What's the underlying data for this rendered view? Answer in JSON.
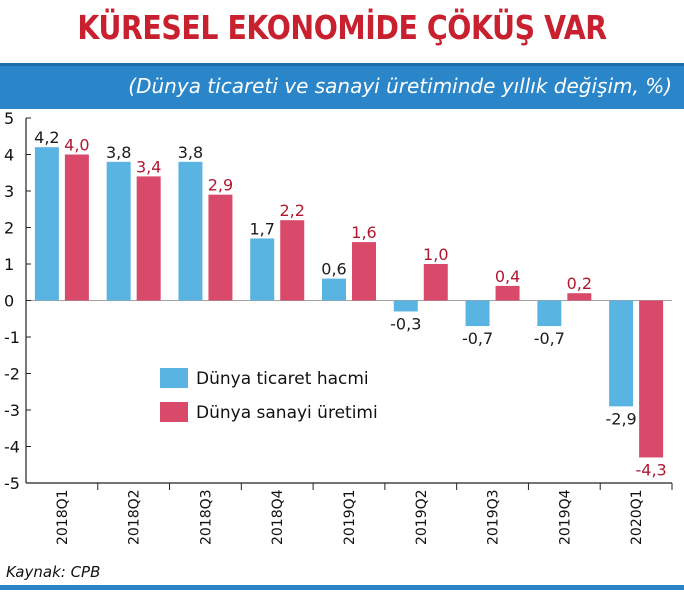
{
  "title": "KÜRESEL EKONOMİDE ÇÖKÜŞ VAR",
  "subtitle": "(Dünya ticareti ve sanayi üretiminde yıllık değişim, %)",
  "source": "Kaynak: CPB",
  "colors": {
    "trade": "#5ab4e2",
    "industry": "#d94a6a",
    "label_trade": "#1b1b1b",
    "label_industry": "#b0182f",
    "band": "#2a86c8"
  },
  "chart_data": {
    "type": "bar",
    "categories": [
      "2018Q1",
      "2018Q2",
      "2018Q3",
      "2018Q4",
      "2019Q1",
      "2019Q2",
      "2019Q3",
      "2019Q4",
      "2020Q1"
    ],
    "series": [
      {
        "name": "Dünya ticaret hacmi",
        "values": [
          4.2,
          3.8,
          3.8,
          1.7,
          0.6,
          -0.3,
          -0.7,
          -0.7,
          -2.9
        ],
        "labels": [
          "4,2",
          "3,8",
          "3,8",
          "1,7",
          "0,6",
          "-0,3",
          "-0,7",
          "-0,7",
          "-2,9"
        ]
      },
      {
        "name": "Dünya sanayi üretimi",
        "values": [
          4.0,
          3.4,
          2.9,
          2.2,
          1.6,
          1.0,
          0.4,
          0.2,
          -4.3
        ],
        "labels": [
          "4,0",
          "3,4",
          "2,9",
          "2,2",
          "1,6",
          "1,0",
          "0,4",
          "0,2",
          "-4,3"
        ]
      }
    ],
    "yticks": [
      "5",
      "4",
      "3",
      "2",
      "1",
      "0",
      "-1",
      "-2",
      "-3",
      "-4",
      "-5"
    ],
    "ylim": [
      -5,
      5
    ],
    "grid": false,
    "legend_position": "left-lower"
  }
}
